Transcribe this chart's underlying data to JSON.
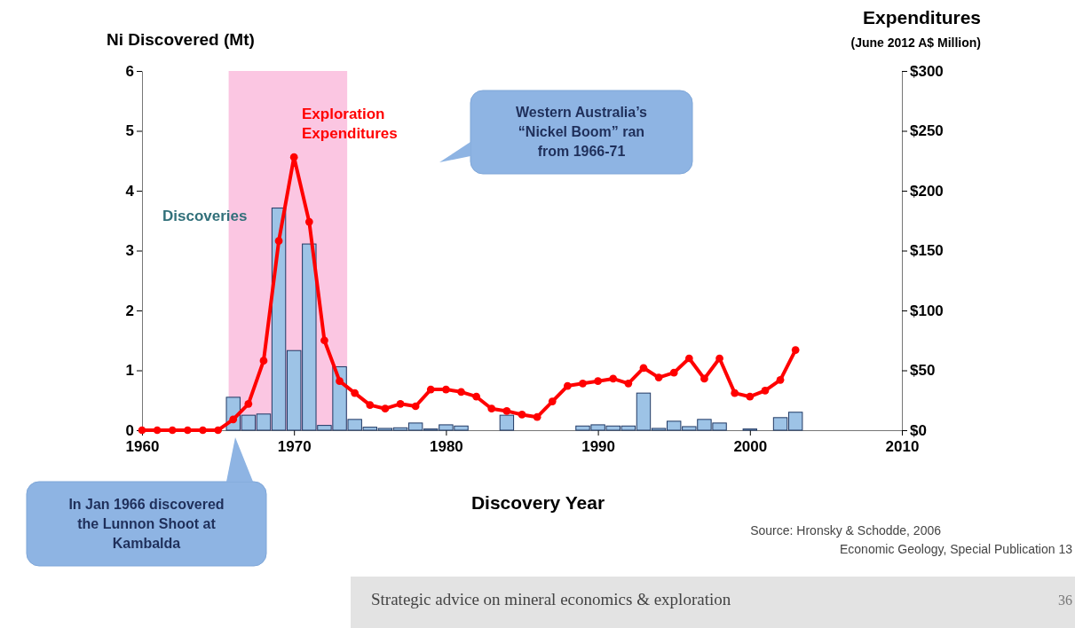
{
  "chart_data": {
    "type": "bar",
    "xlabel": "Discovery Year",
    "ylabel": "Ni Discovered (Mt)",
    "y2label": "Expenditures (June 2012 A$ Million)",
    "x": [
      1960,
      1961,
      1962,
      1963,
      1964,
      1965,
      1966,
      1967,
      1968,
      1969,
      1970,
      1971,
      1972,
      1973,
      1974,
      1975,
      1976,
      1977,
      1978,
      1979,
      1980,
      1981,
      1982,
      1983,
      1984,
      1985,
      1986,
      1987,
      1988,
      1989,
      1990,
      1991,
      1992,
      1993,
      1994,
      1995,
      1996,
      1997,
      1998,
      1999,
      2000,
      2001,
      2002,
      2003
    ],
    "series": [
      {
        "name": "Discoveries",
        "color": "#9dc3e6",
        "values": [
          null,
          null,
          null,
          null,
          null,
          null,
          0.55,
          0.25,
          0.27,
          3.71,
          1.33,
          3.11,
          0.08,
          1.06,
          0.18,
          0.05,
          0.03,
          0.04,
          0.12,
          0.02,
          0.09,
          0.07,
          null,
          null,
          0.25,
          null,
          null,
          null,
          null,
          0.07,
          0.09,
          0.07,
          0.07,
          0.62,
          0.03,
          0.15,
          0.06,
          0.18,
          0.12,
          null,
          0.02,
          null,
          0.21,
          0.3
        ]
      },
      {
        "name": "Exploration Expenditures",
        "type": "line",
        "axis": "y2",
        "color": "#ff0000",
        "marker": "circle",
        "values": [
          0,
          0,
          0,
          0,
          0,
          0,
          9,
          22,
          58,
          158,
          228,
          174,
          75,
          41,
          31,
          21,
          18,
          22,
          20,
          34,
          34,
          32,
          28,
          18,
          16,
          13,
          11,
          24,
          37,
          39,
          41,
          43,
          39,
          52,
          44,
          48,
          60,
          43,
          60,
          31,
          28,
          33,
          42,
          67
        ]
      }
    ],
    "xlim": [
      1960,
      2010
    ],
    "xticks": [
      1960,
      1970,
      1980,
      1990,
      2000,
      2010
    ],
    "ylim": [
      0,
      6
    ],
    "yticks": [
      0,
      1,
      2,
      3,
      4,
      5,
      6
    ],
    "y2lim": [
      0,
      300
    ],
    "y2ticks": [
      {
        "value": 0,
        "label": "$0"
      },
      {
        "value": 50,
        "label": "$50"
      },
      {
        "value": 100,
        "label": "$100"
      },
      {
        "value": 150,
        "label": "$150"
      },
      {
        "value": 200,
        "label": "$200"
      },
      {
        "value": 250,
        "label": "$250"
      },
      {
        "value": 300,
        "label": "$300"
      }
    ],
    "bands": [
      {
        "axis": "x",
        "from": 1965.7,
        "to": 1973.5,
        "color": "#fbc6e2"
      }
    ],
    "grid": false,
    "legend": false,
    "annotations": [
      "Western Australia’s “Nickel Boom” ran from 1966-71",
      "In Jan 1966 discovered the Lunnon Shoot at Kambalda",
      "Source: Hronsky & Schodde, 2006",
      "Economic Geology,  Special Publication 13",
      "Strategic advice on mineral economics & exploration",
      "36"
    ]
  }
}
